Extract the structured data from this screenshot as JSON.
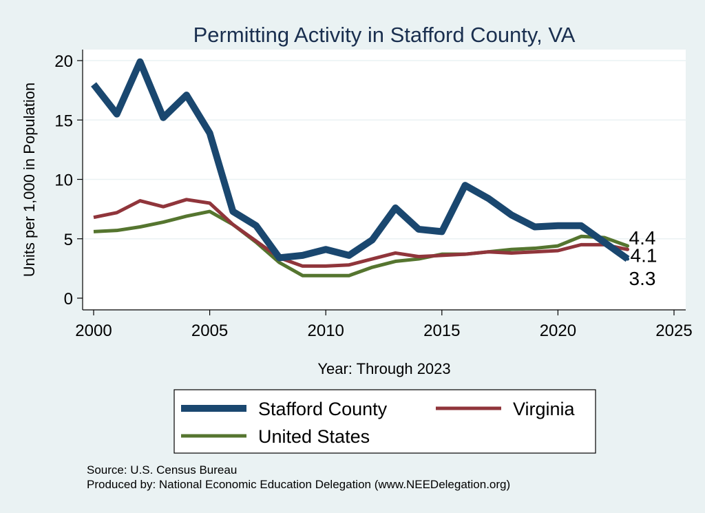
{
  "chart_data": {
    "type": "line",
    "title": "Permitting Activity in Stafford County, VA",
    "xlabel": "Year: Through 2023",
    "ylabel": "Units per 1,000 in Population",
    "xlim": [
      2000,
      2025
    ],
    "ylim": [
      0,
      20
    ],
    "xticks": [
      2000,
      2005,
      2010,
      2015,
      2020,
      2025
    ],
    "yticks": [
      0,
      5,
      10,
      15,
      20
    ],
    "grid": true,
    "legend_position": "bottom",
    "x": [
      2000,
      2001,
      2002,
      2003,
      2004,
      2005,
      2006,
      2007,
      2008,
      2009,
      2010,
      2011,
      2012,
      2013,
      2014,
      2015,
      2016,
      2017,
      2018,
      2019,
      2020,
      2021,
      2022,
      2023
    ],
    "series": [
      {
        "name": "Stafford County",
        "color": "#1a476f",
        "values": [
          18.0,
          15.5,
          19.9,
          15.2,
          17.1,
          13.9,
          7.3,
          6.1,
          3.4,
          3.6,
          4.1,
          3.6,
          4.9,
          7.6,
          5.8,
          5.6,
          9.5,
          8.4,
          7.0,
          6.0,
          6.1,
          6.1,
          4.7,
          3.3
        ],
        "end_label": "3.3"
      },
      {
        "name": "Virginia",
        "color": "#90353b",
        "values": [
          6.8,
          7.2,
          8.2,
          7.7,
          8.3,
          8.0,
          6.2,
          4.8,
          3.4,
          2.7,
          2.7,
          2.8,
          3.3,
          3.8,
          3.5,
          3.6,
          3.7,
          3.9,
          3.8,
          3.9,
          4.0,
          4.5,
          4.5,
          4.1
        ],
        "end_label": "4.1"
      },
      {
        "name": "United States",
        "color": "#55752f",
        "values": [
          5.6,
          5.7,
          6.0,
          6.4,
          6.9,
          7.3,
          6.2,
          4.7,
          3.0,
          1.9,
          1.9,
          1.9,
          2.6,
          3.1,
          3.3,
          3.7,
          3.7,
          3.9,
          4.1,
          4.2,
          4.4,
          5.2,
          5.1,
          4.4
        ],
        "end_label": "4.4"
      }
    ]
  },
  "footer": {
    "source": "Source: U.S. Census Bureau",
    "produced_by": "Produced by: National Economic Education Delegation (www.NEEDelegation.org)"
  }
}
